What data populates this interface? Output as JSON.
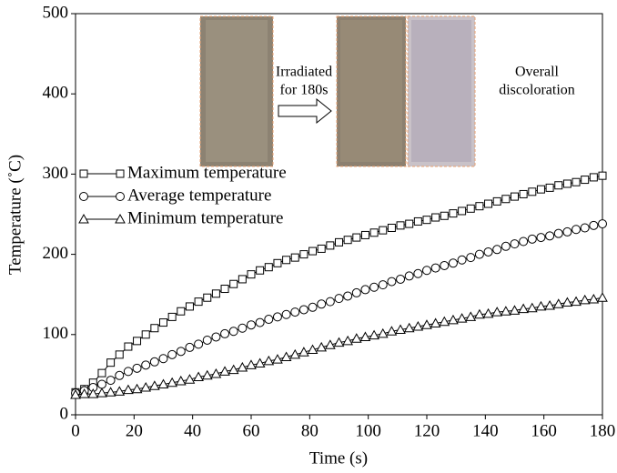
{
  "chart_data": {
    "type": "line",
    "xlabel": "Time (s)",
    "ylabel": "Temperature (˚C)",
    "xlim": [
      0,
      180
    ],
    "xticks": [
      0,
      20,
      40,
      60,
      80,
      100,
      120,
      140,
      160,
      180
    ],
    "ylim": [
      0,
      500
    ],
    "yticks": [
      0,
      100,
      200,
      300,
      400,
      500
    ],
    "legend": "upper left",
    "annotations": [
      [
        "Irradiated",
        "for 180s"
      ],
      [
        "Overall",
        "discoloration"
      ]
    ],
    "x": [
      0,
      3,
      6,
      9,
      12,
      15,
      18,
      21,
      24,
      27,
      30,
      33,
      36,
      39,
      42,
      45,
      48,
      51,
      54,
      57,
      60,
      63,
      66,
      69,
      72,
      75,
      78,
      81,
      84,
      87,
      90,
      93,
      96,
      99,
      102,
      105,
      108,
      111,
      114,
      117,
      120,
      123,
      126,
      129,
      132,
      135,
      138,
      141,
      144,
      147,
      150,
      153,
      156,
      159,
      162,
      165,
      168,
      171,
      174,
      177,
      180
    ],
    "series": [
      {
        "name": "Maximum temperature",
        "color": "#000000",
        "marker": "square",
        "values": [
          28,
          32,
          40,
          52,
          65,
          75,
          85,
          92,
          100,
          108,
          115,
          122,
          129,
          135,
          141,
          146,
          151,
          157,
          163,
          169,
          175,
          180,
          184,
          189,
          193,
          196,
          200,
          204,
          207,
          211,
          215,
          218,
          221,
          224,
          227,
          230,
          233,
          236,
          238,
          241,
          243,
          246,
          248,
          251,
          254,
          257,
          260,
          263,
          266,
          269,
          272,
          275,
          278,
          281,
          283,
          286,
          288,
          290,
          293,
          296,
          298
        ]
      },
      {
        "name": "Average temperature",
        "color": "#000000",
        "marker": "circle",
        "values": [
          27,
          30,
          34,
          38,
          43,
          49,
          54,
          58,
          62,
          66,
          70,
          75,
          79,
          84,
          88,
          93,
          97,
          101,
          104,
          108,
          112,
          115,
          119,
          122,
          125,
          128,
          131,
          134,
          138,
          141,
          145,
          148,
          152,
          156,
          159,
          162,
          166,
          169,
          173,
          176,
          180,
          183,
          186,
          189,
          193,
          196,
          200,
          203,
          206,
          210,
          213,
          216,
          219,
          221,
          223,
          226,
          228,
          231,
          233,
          236,
          238
        ]
      },
      {
        "name": "Minimum temperature",
        "color": "#000000",
        "marker": "triangle",
        "values": [
          25,
          26,
          26,
          27,
          28,
          29,
          31,
          32,
          34,
          36,
          38,
          40,
          42,
          44,
          47,
          49,
          51,
          54,
          56,
          59,
          62,
          64,
          67,
          69,
          72,
          75,
          78,
          81,
          84,
          87,
          90,
          92,
          95,
          97,
          99,
          101,
          104,
          106,
          108,
          110,
          112,
          114,
          116,
          118,
          120,
          122,
          125,
          126,
          128,
          129,
          130,
          132,
          133,
          135,
          136,
          138,
          140,
          141,
          143,
          144,
          146
        ]
      }
    ]
  }
}
